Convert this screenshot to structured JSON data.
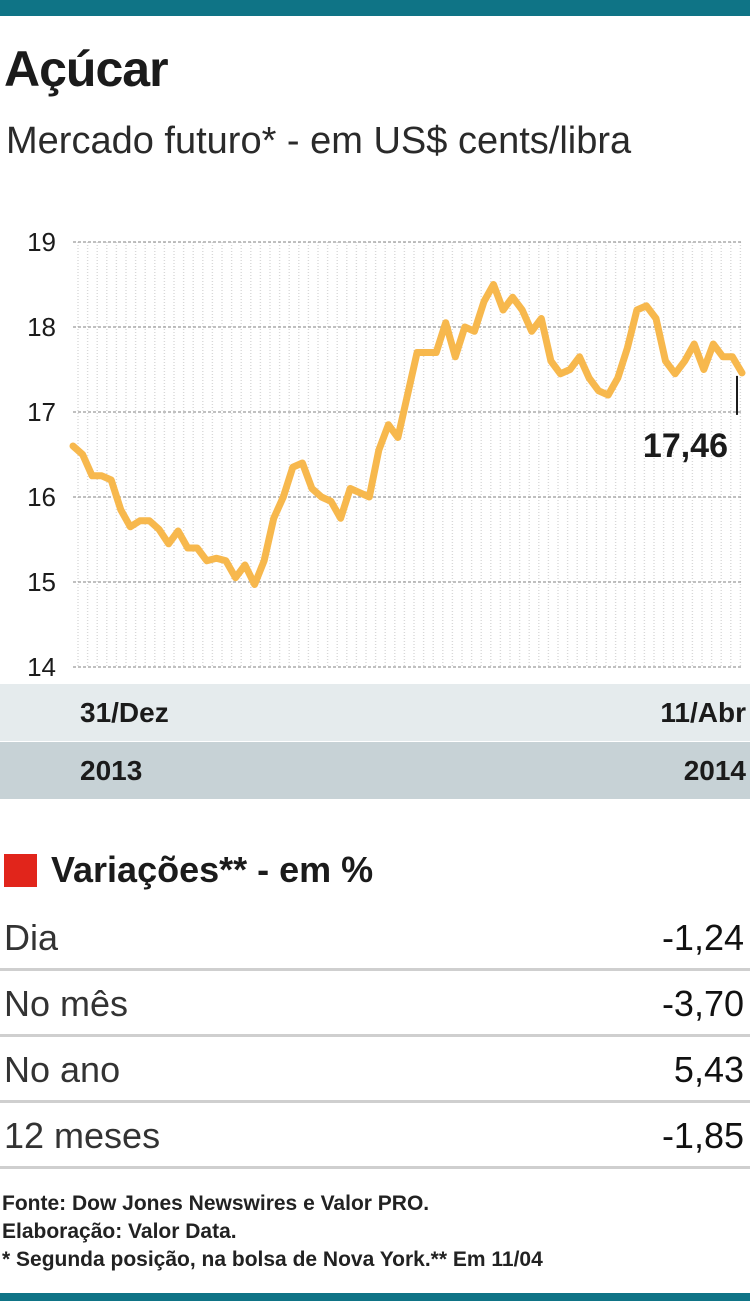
{
  "title": "Açúcar",
  "subtitle": "Mercado futuro* - em US$ cents/libra",
  "chart_data": {
    "type": "line",
    "ylim": [
      14,
      19
    ],
    "yticks": [
      "14",
      "15",
      "16",
      "17",
      "18",
      "19"
    ],
    "x_start_label": "31/Dez",
    "x_end_label": "11/Abr",
    "year_start_label": "2013",
    "year_end_label": "2014",
    "last_value_label": "17,46",
    "series": [
      {
        "color": "#f7b84d",
        "values": [
          16.6,
          16.5,
          16.25,
          16.25,
          16.2,
          15.85,
          15.65,
          15.72,
          15.72,
          15.62,
          15.45,
          15.6,
          15.4,
          15.4,
          15.25,
          15.28,
          15.25,
          15.05,
          15.2,
          14.97,
          15.25,
          15.75,
          16.0,
          16.35,
          16.4,
          16.1,
          16.0,
          15.95,
          15.75,
          16.1,
          16.05,
          16.0,
          16.55,
          16.85,
          16.7,
          17.2,
          17.7,
          17.7,
          17.7,
          18.05,
          17.65,
          18.0,
          17.95,
          18.3,
          18.5,
          18.2,
          18.35,
          18.2,
          17.95,
          18.1,
          17.6,
          17.45,
          17.5,
          17.65,
          17.4,
          17.25,
          17.2,
          17.4,
          17.75,
          18.2,
          18.25,
          18.1,
          17.6,
          17.45,
          17.6,
          17.8,
          17.5,
          17.8,
          17.65,
          17.65,
          17.46
        ]
      }
    ]
  },
  "variations": {
    "title": "Variações** - em %",
    "rows": [
      {
        "label": "Dia",
        "value": "-1,24"
      },
      {
        "label": "No mês",
        "value": "-3,70"
      },
      {
        "label": "No ano",
        "value": "5,43"
      },
      {
        "label": "12 meses",
        "value": "-1,85"
      }
    ]
  },
  "footer": {
    "source": "Fonte: Dow Jones Newswires e Valor PRO.",
    "elaboration": "Elaboração: Valor Data.",
    "note": "* Segunda posição, na bolsa de Nova York.** Em 11/04"
  }
}
